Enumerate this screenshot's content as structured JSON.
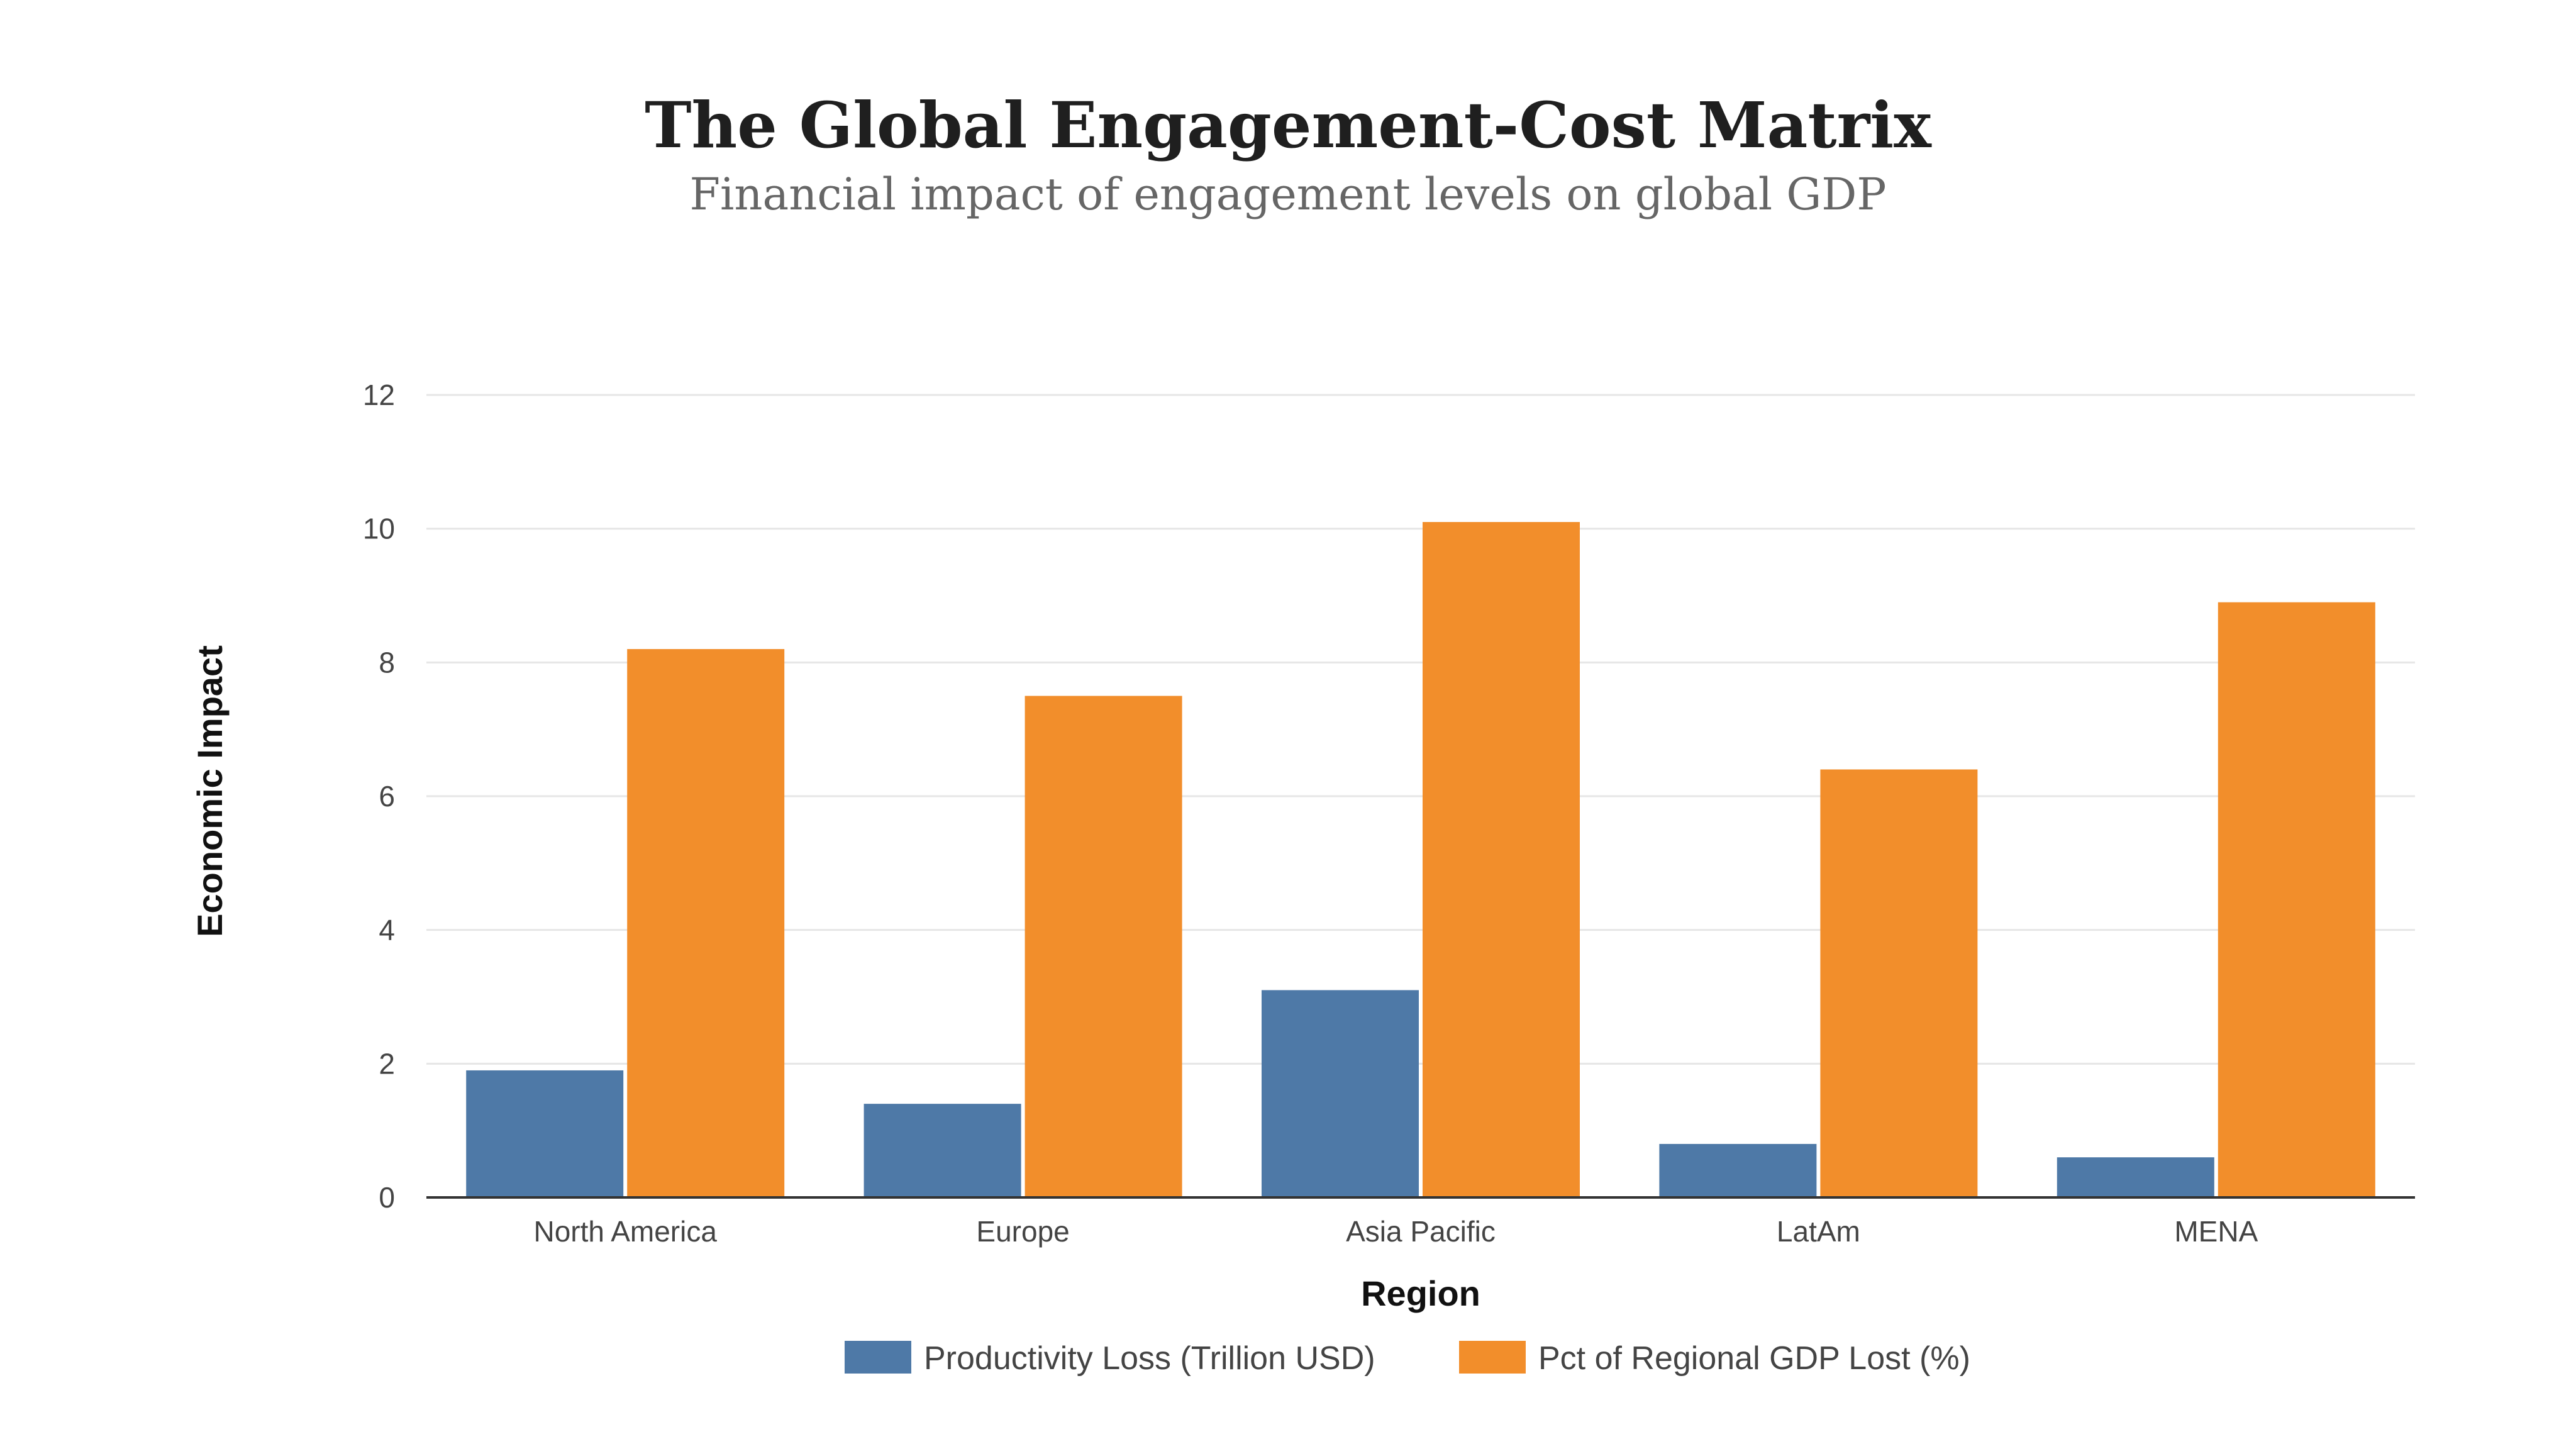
{
  "chart_data": {
    "type": "bar",
    "title": "The Global Engagement-Cost Matrix",
    "subtitle": "Financial impact of engagement levels on global GDP",
    "xlabel": "Region",
    "ylabel": "Economic Impact",
    "ylim": [
      0,
      12
    ],
    "yticks": [
      "0",
      "2",
      "4",
      "6",
      "8",
      "10",
      "12"
    ],
    "grid": true,
    "legend_position": "bottom",
    "categories": [
      "North America",
      "Europe",
      "Asia Pacific",
      "LatAm",
      "MENA"
    ],
    "series": [
      {
        "name": "Productivity Loss (Trillion USD)",
        "color": "#4e79a7",
        "values": [
          1.9,
          1.4,
          3.1,
          0.8,
          0.6
        ]
      },
      {
        "name": "Pct of Regional GDP Lost (%)",
        "color": "#f28e2b",
        "values": [
          8.2,
          7.5,
          10.1,
          6.4,
          8.9
        ]
      }
    ]
  }
}
